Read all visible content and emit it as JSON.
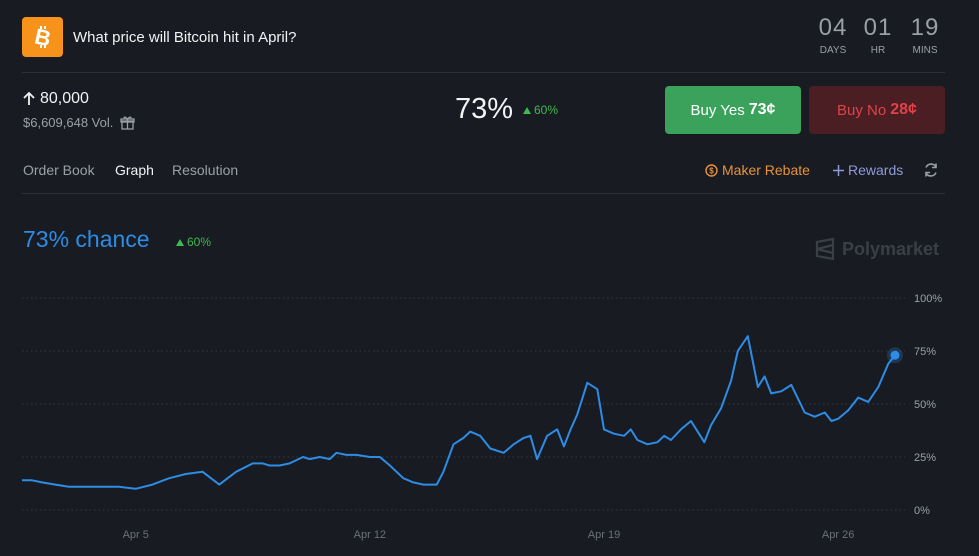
{
  "header": {
    "title": "What price will Bitcoin hit in April?",
    "logo_icon": "bitcoin-icon",
    "countdown": [
      {
        "value": "04",
        "unit": "DAYS"
      },
      {
        "value": "01",
        "unit": "HR"
      },
      {
        "value": "19",
        "unit": "MINS"
      }
    ]
  },
  "market": {
    "strike": "80,000",
    "volume": "$6,609,648 Vol.",
    "probability": "73%",
    "change": "60%"
  },
  "actions": {
    "buy_yes_label": "Buy Yes",
    "buy_yes_price": "73¢",
    "buy_no_label": "Buy No",
    "buy_no_price": "28¢"
  },
  "tabs": [
    {
      "label": "Order Book",
      "active": false
    },
    {
      "label": "Graph",
      "active": true
    },
    {
      "label": "Resolution",
      "active": false
    }
  ],
  "links": {
    "maker_rebate": "Maker Rebate",
    "rewards": "Rewards"
  },
  "graph": {
    "chance_label": "73% chance",
    "change": "60%",
    "brand": "Polymarket"
  },
  "colors": {
    "accent": "#2d8ce6",
    "yes": "#3aa25a",
    "no": "#e0424a",
    "up": "#3fb950",
    "maker": "#e8923d",
    "rewards": "#8e9ad8"
  },
  "chart_data": {
    "type": "line",
    "title": "",
    "xlabel": "",
    "ylabel": "",
    "x_ticks": [
      "Apr 5",
      "Apr 12",
      "Apr 19",
      "Apr 26"
    ],
    "y_ticks": [
      "100%",
      "75%",
      "50%",
      "25%",
      "0%"
    ],
    "ylim": [
      0,
      100
    ],
    "xlim": [
      1.6,
      27.7
    ],
    "grid": true,
    "series": [
      {
        "x": [
          1.6,
          1.9,
          2.2,
          2.6,
          3.0,
          3.5,
          4.0,
          4.5,
          5.0,
          5.5,
          6.0,
          6.5,
          7.0,
          7.5,
          8.0,
          8.5,
          8.8,
          9.0,
          9.3,
          9.6,
          10.0,
          10.2,
          10.5,
          10.8,
          11.0,
          11.3,
          11.6,
          12.0,
          12.3,
          12.6,
          13.0,
          13.3,
          13.6,
          13.8,
          14.0,
          14.2,
          14.5,
          14.8,
          15.0,
          15.3,
          15.6,
          16.0,
          16.3,
          16.6,
          16.8,
          17.0,
          17.3,
          17.6,
          17.8,
          18.0,
          18.2,
          18.5,
          18.8,
          19.0,
          19.3,
          19.6,
          19.8,
          20.0,
          20.3,
          20.6,
          20.8,
          21.0,
          21.3,
          21.6,
          22.0,
          22.2,
          22.5,
          22.8,
          23.0,
          23.3,
          23.6,
          23.8,
          24.0,
          24.3,
          24.6,
          25.0,
          25.3,
          25.6,
          25.8,
          26.0,
          26.3,
          26.6,
          26.9,
          27.2,
          27.5,
          27.7
        ],
        "y": [
          14,
          14,
          13,
          12,
          11,
          11,
          11,
          11,
          10,
          12,
          15,
          17,
          18,
          12,
          18,
          22,
          22,
          21,
          21,
          22,
          25,
          24,
          25,
          24,
          27,
          26,
          26,
          25,
          25,
          21,
          15,
          13,
          12,
          12,
          12,
          18,
          31,
          34,
          37,
          35,
          29,
          27,
          31,
          34,
          35,
          24,
          35,
          38,
          30,
          38,
          45,
          60,
          57,
          38,
          36,
          35,
          38,
          33,
          31,
          32,
          35,
          33,
          38,
          42,
          32,
          40,
          48,
          61,
          75,
          82,
          58,
          63,
          55,
          56,
          59,
          46,
          44,
          46,
          42,
          43,
          47,
          53,
          51,
          58,
          69,
          73
        ]
      }
    ],
    "annotations": [
      "73% chance",
      "60%"
    ]
  }
}
